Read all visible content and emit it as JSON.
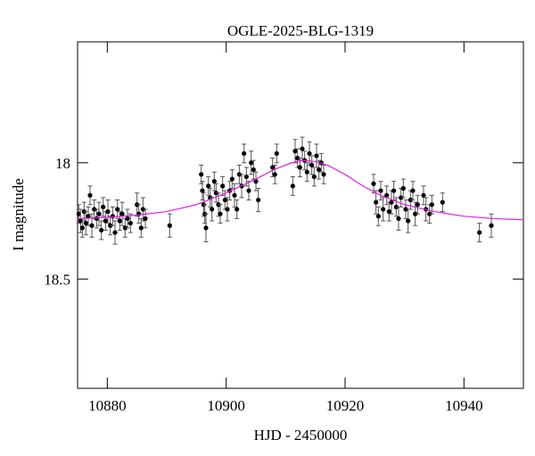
{
  "chart_data": {
    "type": "scatter",
    "title": "OGLE-2025-BLG-1319",
    "x_label": "HJD - 2450000",
    "y_label": "I magnitude",
    "xlim": [
      10875,
      10950
    ],
    "xticks": [
      10880,
      10900,
      10920,
      10940
    ],
    "ylim": [
      18.97,
      17.48
    ],
    "yticks": [
      18,
      18.5
    ],
    "series": [
      {
        "type": "scatter",
        "color": "#000000",
        "x": [
          10875.2,
          10875.5,
          10875.8,
          10876.1,
          10876.4,
          10876.8,
          10877.1,
          10877.4,
          10877.8,
          10878.2,
          10878.6,
          10879.0,
          10879.3,
          10879.7,
          10880.1,
          10880.5,
          10880.9,
          10881.3,
          10881.7,
          10882.1,
          10882.5,
          10883.0,
          10883.4,
          10883.9,
          10885.0,
          10885.3,
          10885.7,
          10886.0,
          10886.4,
          10890.5,
          10895.8,
          10896.0,
          10896.2,
          10896.4,
          10896.6,
          10897.0,
          10897.3,
          10897.6,
          10898.0,
          10898.3,
          10898.7,
          10899.0,
          10899.4,
          10899.8,
          10900.2,
          10900.6,
          10901.0,
          10901.4,
          10901.8,
          10902.2,
          10902.6,
          10903.0,
          10903.4,
          10903.8,
          10904.2,
          10904.6,
          10905.0,
          10905.4,
          10907.8,
          10908.2,
          10908.5,
          10911.2,
          10911.6,
          10912.0,
          10912.4,
          10912.8,
          10913.2,
          10913.6,
          10914.0,
          10914.4,
          10914.8,
          10915.2,
          10915.6,
          10916.0,
          10916.4,
          10924.8,
          10925.2,
          10925.6,
          10926.0,
          10926.4,
          10927.0,
          10927.4,
          10927.8,
          10928.2,
          10928.6,
          10929.0,
          10929.4,
          10929.8,
          10930.2,
          10930.6,
          10931.0,
          10931.4,
          10931.8,
          10932.2,
          10933.2,
          10933.6,
          10934.2,
          10934.6,
          10936.4,
          10942.6,
          10944.6
        ],
        "values": [
          18.22,
          18.25,
          18.28,
          18.21,
          18.26,
          18.23,
          18.14,
          18.27,
          18.2,
          18.24,
          18.22,
          18.29,
          18.19,
          18.25,
          18.21,
          18.27,
          18.23,
          18.3,
          18.2,
          18.25,
          18.22,
          18.28,
          18.24,
          18.26,
          18.18,
          18.22,
          18.28,
          18.2,
          18.24,
          18.27,
          18.05,
          18.12,
          18.18,
          18.22,
          18.28,
          18.1,
          18.15,
          18.2,
          18.08,
          18.13,
          18.18,
          18.22,
          18.1,
          18.16,
          18.2,
          18.12,
          18.07,
          18.14,
          18.2,
          18.05,
          18.1,
          17.96,
          18.06,
          18.12,
          18.0,
          18.03,
          18.08,
          18.16,
          18.02,
          18.05,
          17.96,
          18.1,
          17.95,
          17.98,
          18.02,
          17.94,
          17.99,
          18.04,
          17.96,
          18.01,
          18.06,
          17.97,
          18.03,
          18.0,
          18.05,
          18.09,
          18.17,
          18.23,
          18.12,
          18.2,
          18.14,
          18.21,
          18.17,
          18.12,
          18.19,
          18.24,
          18.15,
          18.11,
          18.2,
          18.25,
          18.16,
          18.12,
          18.22,
          18.18,
          18.14,
          18.2,
          18.22,
          18.18,
          18.17,
          18.3,
          18.27
        ],
        "errors": [
          0.04,
          0.05,
          0.04,
          0.04,
          0.05,
          0.04,
          0.04,
          0.05,
          0.04,
          0.04,
          0.05,
          0.04,
          0.04,
          0.04,
          0.05,
          0.04,
          0.04,
          0.05,
          0.04,
          0.04,
          0.05,
          0.04,
          0.04,
          0.04,
          0.05,
          0.04,
          0.04,
          0.05,
          0.04,
          0.05,
          0.04,
          0.04,
          0.05,
          0.04,
          0.06,
          0.04,
          0.04,
          0.05,
          0.04,
          0.04,
          0.05,
          0.04,
          0.04,
          0.04,
          0.05,
          0.04,
          0.04,
          0.05,
          0.04,
          0.04,
          0.05,
          0.04,
          0.04,
          0.04,
          0.05,
          0.04,
          0.04,
          0.05,
          0.04,
          0.04,
          0.04,
          0.04,
          0.05,
          0.04,
          0.04,
          0.05,
          0.04,
          0.04,
          0.05,
          0.04,
          0.04,
          0.05,
          0.04,
          0.04,
          0.04,
          0.04,
          0.05,
          0.04,
          0.04,
          0.05,
          0.04,
          0.04,
          0.05,
          0.04,
          0.04,
          0.05,
          0.04,
          0.04,
          0.04,
          0.05,
          0.04,
          0.04,
          0.05,
          0.04,
          0.04,
          0.05,
          0.04,
          0.04,
          0.04,
          0.04,
          0.05
        ]
      },
      {
        "type": "line",
        "color": "#e020e0",
        "x": [
          10875,
          10880,
          10885,
          10890,
          10895,
          10900,
          10905,
          10908,
          10911,
          10913,
          10915,
          10917,
          10920,
          10923,
          10926,
          10930,
          10935,
          10940,
          10945,
          10950
        ],
        "values": [
          18.24,
          18.235,
          18.225,
          18.21,
          18.18,
          18.13,
          18.07,
          18.03,
          18.0,
          17.99,
          17.995,
          18.01,
          18.05,
          18.1,
          18.14,
          18.18,
          18.21,
          18.23,
          18.24,
          18.245
        ]
      }
    ]
  }
}
